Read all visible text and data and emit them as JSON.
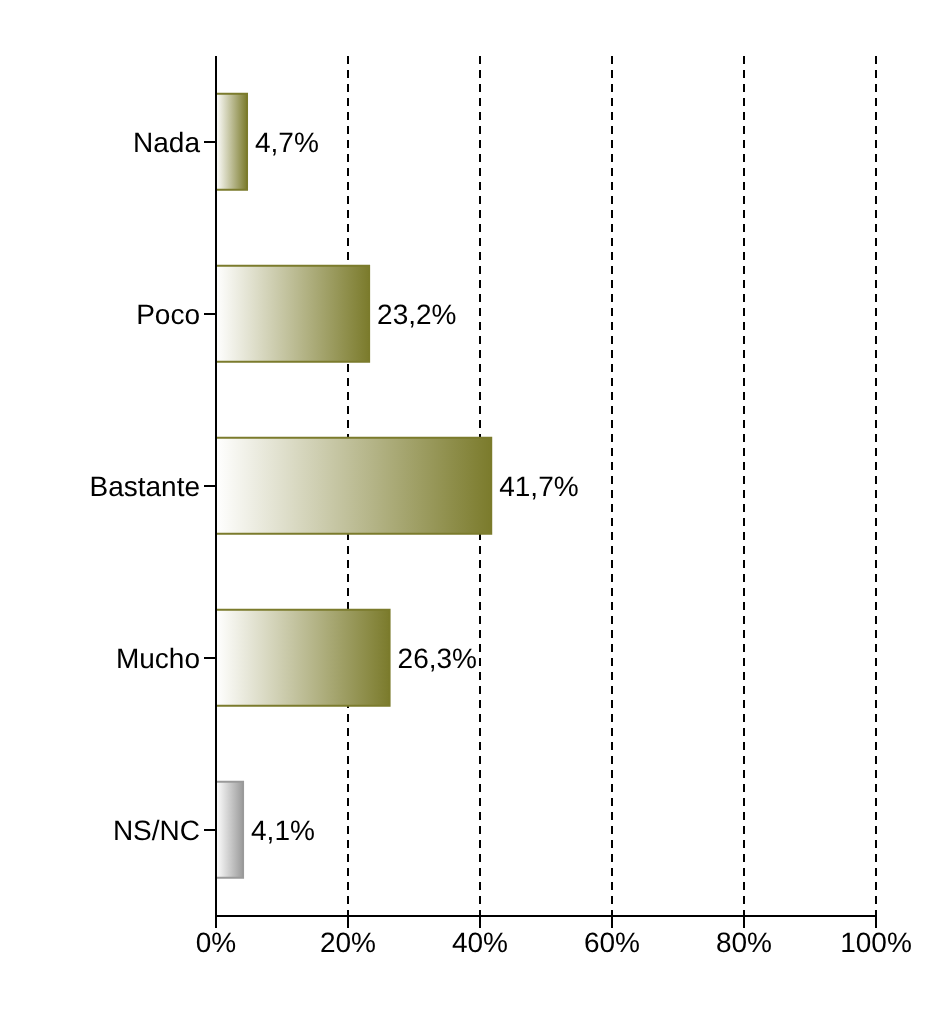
{
  "chart_data": {
    "type": "bar",
    "orientation": "horizontal",
    "categories": [
      "Nada",
      "Poco",
      "Bastante",
      "Mucho",
      "NS/NC"
    ],
    "values": [
      4.7,
      23.2,
      41.7,
      26.3,
      4.1
    ],
    "colors": [
      "#7b7b2c",
      "#7b7b2c",
      "#7b7b2c",
      "#7b7b2c",
      "#9a9a9a"
    ],
    "value_labels": [
      "4,7%",
      "23,2%",
      "41,7%",
      "26,3%",
      "4,1%"
    ],
    "xlim": [
      0,
      100
    ],
    "xticks": [
      {
        "value": 0,
        "label": "0%"
      },
      {
        "value": 20,
        "label": "20%"
      },
      {
        "value": 40,
        "label": "40%"
      },
      {
        "value": 60,
        "label": "60%"
      },
      {
        "value": 80,
        "label": "80%"
      },
      {
        "value": 100,
        "label": "100%"
      }
    ],
    "grid": "x"
  }
}
